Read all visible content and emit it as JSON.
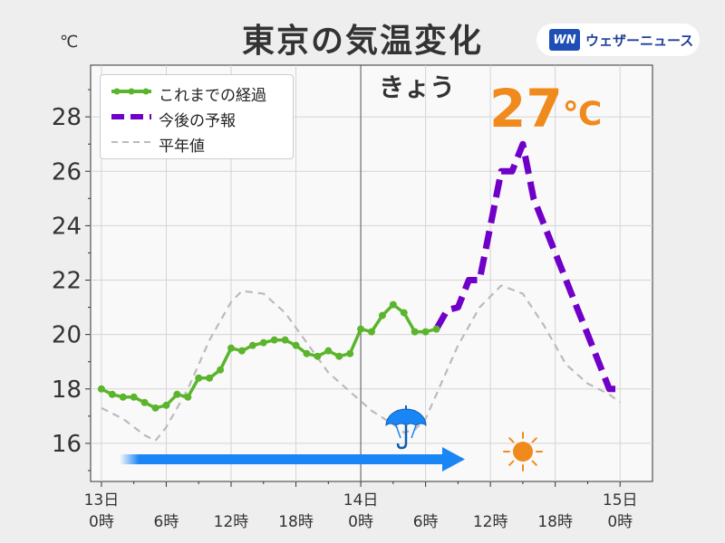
{
  "title": "東京の気温変化",
  "unit": "℃",
  "logo": {
    "mark": "WN",
    "text": "ウェザーニュース"
  },
  "legend": [
    {
      "label": "これまでの経過",
      "color": "#5bb52c",
      "style": "solid-dots"
    },
    {
      "label": "今後の予報",
      "color": "#7000c8",
      "style": "thick-dash"
    },
    {
      "label": "平年値",
      "color": "#bbbbbb",
      "style": "dash"
    }
  ],
  "today_label": "きょう",
  "max_label": {
    "value": "27",
    "unit": "℃",
    "color": "#f08a1c"
  },
  "weather_icons": [
    "umbrella-icon",
    "sun-icon"
  ],
  "colors": {
    "observed": "#5bb52c",
    "forecast": "#7000c8",
    "normal": "#bbbbbb",
    "arrow": "#1a85f5",
    "umbrella": "#1a85f5",
    "sun": "#f08a1c"
  },
  "chart_data": {
    "type": "line",
    "ylabel": "℃",
    "ylim": [
      14.6,
      29.9
    ],
    "xlim": [
      -1,
      51
    ],
    "y_ticks": [
      16,
      18,
      20,
      22,
      24,
      26,
      28
    ],
    "x_ticks": [
      {
        "x": 0,
        "line1": "13日",
        "line2": "0時"
      },
      {
        "x": 6,
        "line1": "",
        "line2": "6時"
      },
      {
        "x": 12,
        "line1": "",
        "line2": "12時"
      },
      {
        "x": 18,
        "line1": "",
        "line2": "18時"
      },
      {
        "x": 24,
        "line1": "14日",
        "line2": "0時"
      },
      {
        "x": 30,
        "line1": "",
        "line2": "6時"
      },
      {
        "x": 36,
        "line1": "",
        "line2": "12時"
      },
      {
        "x": 42,
        "line1": "",
        "line2": "18時"
      },
      {
        "x": 48,
        "line1": "15日",
        "line2": "0時"
      }
    ],
    "grid": true,
    "legend_position": "top-left",
    "series": [
      {
        "name": "これまでの経過",
        "x": [
          0,
          1,
          2,
          3,
          4,
          5,
          6,
          7,
          8,
          9,
          10,
          11,
          12,
          13,
          14,
          15,
          16,
          17,
          18,
          19,
          20,
          21,
          22,
          23,
          24,
          25,
          26,
          27,
          28,
          29,
          30,
          31
        ],
        "y": [
          18.0,
          17.8,
          17.7,
          17.7,
          17.5,
          17.3,
          17.4,
          17.8,
          17.7,
          18.4,
          18.4,
          18.7,
          19.5,
          19.4,
          19.6,
          19.7,
          19.8,
          19.8,
          19.6,
          19.3,
          19.2,
          19.4,
          19.2,
          19.3,
          20.2,
          20.1,
          20.7,
          21.1,
          20.8,
          20.1,
          20.1,
          20.2
        ]
      },
      {
        "name": "今後の予報",
        "x": [
          31,
          32,
          33,
          34,
          35,
          36,
          37,
          38,
          39,
          40,
          41,
          42,
          43,
          44,
          45,
          46,
          47,
          48
        ],
        "y": [
          20.2,
          20.9,
          21.0,
          22.0,
          22.0,
          24.0,
          26.0,
          26.0,
          27.0,
          25.0,
          24.0,
          23.0,
          22.0,
          21.0,
          20.0,
          19.0,
          18.0,
          18.0
        ]
      },
      {
        "name": "平年値",
        "x": [
          0,
          2,
          4,
          5,
          6,
          8,
          10,
          12,
          13,
          15,
          17,
          19,
          21,
          23,
          25,
          27,
          28,
          29,
          30,
          31,
          33,
          35,
          37,
          39,
          41,
          43,
          45,
          47,
          48
        ],
        "y": [
          17.3,
          16.9,
          16.3,
          16.1,
          16.6,
          18.0,
          19.8,
          21.2,
          21.6,
          21.5,
          20.8,
          19.7,
          18.6,
          17.9,
          17.2,
          16.7,
          16.4,
          16.5,
          16.9,
          17.8,
          19.6,
          21.0,
          21.8,
          21.5,
          20.3,
          18.9,
          18.2,
          17.8,
          17.5
        ]
      }
    ]
  }
}
